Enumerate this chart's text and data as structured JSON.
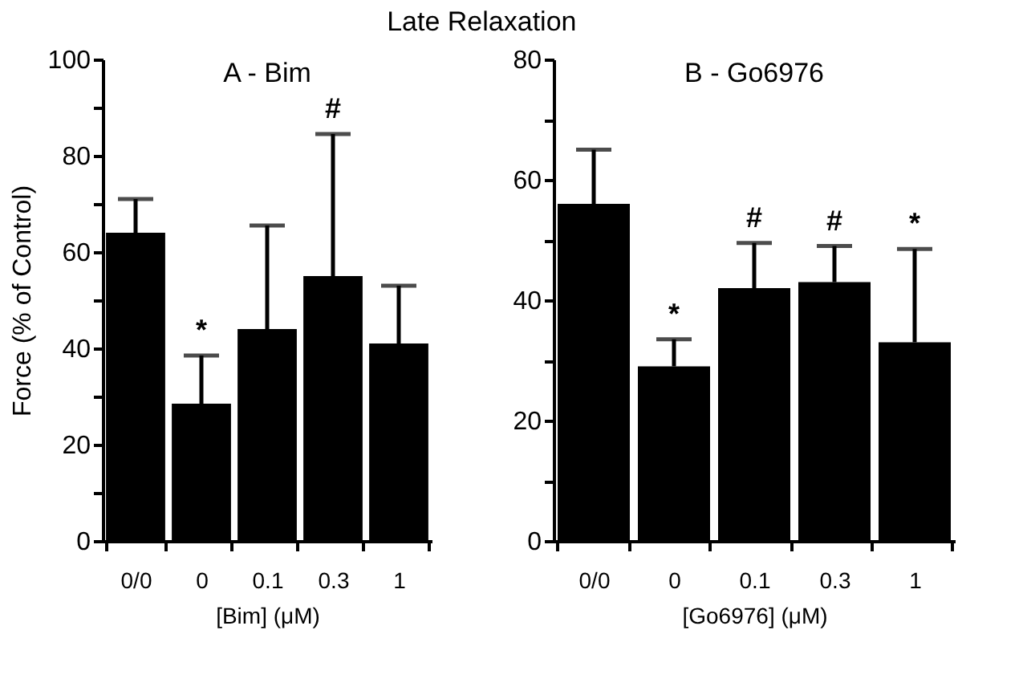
{
  "chart_data": [
    {
      "type": "bar",
      "title": "A - Bim",
      "xlabel": "[Bim]  (μM)",
      "ylabel": "Force  (% of Control)",
      "categories": [
        "0/0",
        "0",
        "0.1",
        "0.3",
        "1"
      ],
      "series": [
        {
          "color": "#000000",
          "values": [
            64,
            28.5,
            44,
            55,
            41
          ],
          "errors": [
            [
              64,
              71
            ],
            [
              28.5,
              38.5
            ],
            [
              44,
              65.5
            ],
            [
              55,
              84.5
            ],
            [
              41,
              53
            ]
          ]
        }
      ],
      "ylim": [
        0,
        100
      ],
      "yticks": [
        0,
        {
          "value": 10,
          "label": null
        },
        20,
        {
          "value": 30,
          "label": null
        },
        40,
        {
          "value": 50,
          "label": null
        },
        60,
        {
          "value": 70,
          "label": null
        },
        80,
        {
          "value": 90,
          "label": null
        },
        100
      ],
      "annotations": [
        "Late Relaxation",
        {
          "text": "*",
          "x": "0",
          "y": 38.5
        },
        {
          "text": "#",
          "x": "0.3",
          "y": 84.5
        }
      ]
    },
    {
      "type": "bar",
      "title": "B - Go6976",
      "xlabel": "[Go6976]  (μM)",
      "categories": [
        "0/0",
        "0",
        "0.1",
        "0.3",
        "1"
      ],
      "series": [
        {
          "color": "#000000",
          "values": [
            56,
            29,
            42,
            43,
            33
          ],
          "errors": [
            [
              56,
              65
            ],
            [
              29,
              33.5
            ],
            [
              42,
              49.5
            ],
            [
              43,
              49
            ],
            [
              33,
              48.5
            ]
          ]
        }
      ],
      "ylim": [
        0,
        80
      ],
      "yticks": [
        0,
        {
          "value": 10,
          "label": null
        },
        20,
        {
          "value": 30,
          "label": null
        },
        40,
        {
          "value": 50,
          "label": null
        },
        60,
        {
          "value": 70,
          "label": null
        },
        80
      ],
      "annotations": [
        {
          "text": "*",
          "x": "0",
          "y": 33.5
        },
        {
          "text": "#",
          "x": "0.1",
          "y": 49.5
        },
        {
          "text": "#",
          "x": "0.3",
          "y": 49
        },
        {
          "text": "*",
          "x": "1",
          "y": 48.5
        }
      ]
    }
  ]
}
